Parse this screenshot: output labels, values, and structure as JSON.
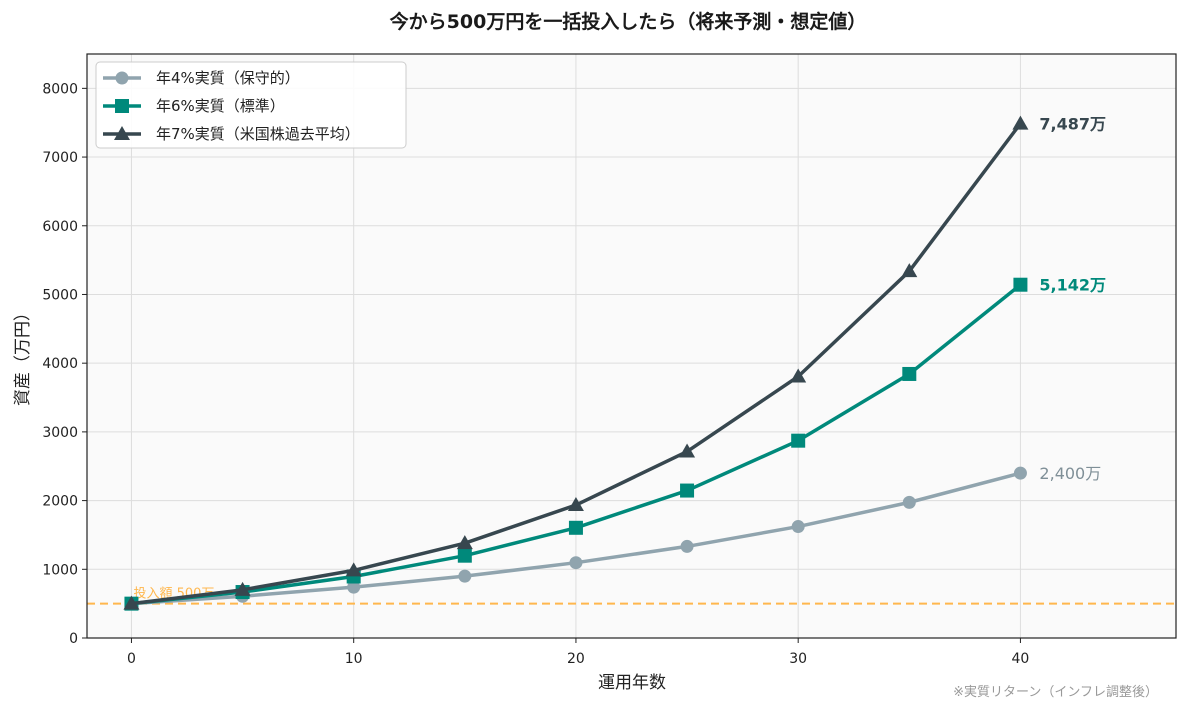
{
  "chart_data": {
    "type": "line",
    "title": "今から500万円を一括投入したら（将来予測・想定値）",
    "xlabel": "運用年数",
    "ylabel": "資産（万円）",
    "xlim": [
      -2,
      47
    ],
    "ylim": [
      0,
      8500
    ],
    "xticks": [
      0,
      10,
      20,
      30,
      40
    ],
    "yticks": [
      0,
      1000,
      2000,
      3000,
      4000,
      5000,
      6000,
      7000,
      8000
    ],
    "grid": true,
    "legend_position": "top-left",
    "x": [
      0,
      5,
      10,
      15,
      20,
      25,
      30,
      35,
      40
    ],
    "series": [
      {
        "name": "年4%実質（保守的）",
        "color": "#90a4ae",
        "marker": "circle",
        "values": [
          500,
          608,
          740,
          900,
          1096,
          1333,
          1622,
          1974,
          2400
        ],
        "end_label": "2,400万",
        "end_label_bold": false,
        "end_label_color": "#7f8f97"
      },
      {
        "name": "年6%実質（標準）",
        "color": "#00897b",
        "marker": "square",
        "values": [
          500,
          669,
          895,
          1198,
          1604,
          2146,
          2872,
          3843,
          5142
        ],
        "end_label": "5,142万",
        "end_label_bold": true,
        "end_label_color": "#00897b"
      },
      {
        "name": "年7%実質（米国株過去平均）",
        "color": "#37474f",
        "marker": "triangle",
        "values": [
          500,
          701,
          984,
          1380,
          1935,
          2714,
          3806,
          5339,
          7487
        ],
        "end_label": "7,487万",
        "end_label_bold": true,
        "end_label_color": "#37474f"
      }
    ],
    "reference_line": {
      "value": 500,
      "label": "投入額 500万",
      "color": "#ffb74d"
    },
    "footnote": "※実質リターン（インフレ調整後）"
  }
}
